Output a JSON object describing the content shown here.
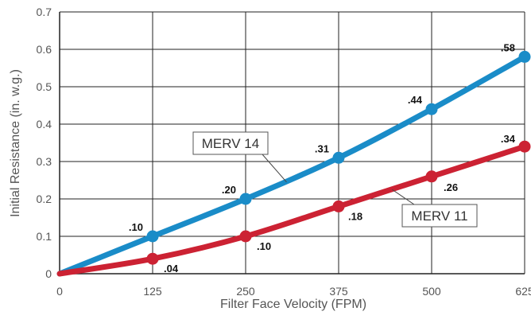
{
  "chart_data": {
    "type": "line",
    "xlabel": "Filter Face Velocity (FPM)",
    "ylabel": "Initial Resistance (in. w.g.)",
    "xlim": [
      0,
      625
    ],
    "ylim": [
      0,
      0.7
    ],
    "xticks": [
      0,
      125,
      250,
      375,
      500,
      625
    ],
    "yticks": [
      0,
      0.1,
      0.2,
      0.3,
      0.4,
      0.5,
      0.6,
      0.7
    ],
    "xtick_labels": [
      "0",
      "125",
      "250",
      "375",
      "500",
      "625"
    ],
    "ytick_labels": [
      "0",
      "0.1",
      "0.2",
      "0.3",
      "0.4",
      "0.5",
      "0.6",
      "0.7"
    ],
    "grid": true,
    "series": [
      {
        "name": "MERV 14",
        "color": "#1a8cc8",
        "x": [
          0,
          125,
          250,
          375,
          500,
          625
        ],
        "y": [
          0,
          0.1,
          0.2,
          0.31,
          0.44,
          0.58
        ],
        "labels": [
          "",
          ".10",
          ".20",
          ".31",
          ".44",
          ".58"
        ]
      },
      {
        "name": "MERV 11",
        "color": "#cc2233",
        "x": [
          0,
          125,
          250,
          375,
          500,
          625
        ],
        "y": [
          0,
          0.04,
          0.1,
          0.18,
          0.26,
          0.34
        ],
        "labels": [
          "",
          ".04",
          ".10",
          ".18",
          ".26",
          ".34"
        ]
      }
    ]
  }
}
